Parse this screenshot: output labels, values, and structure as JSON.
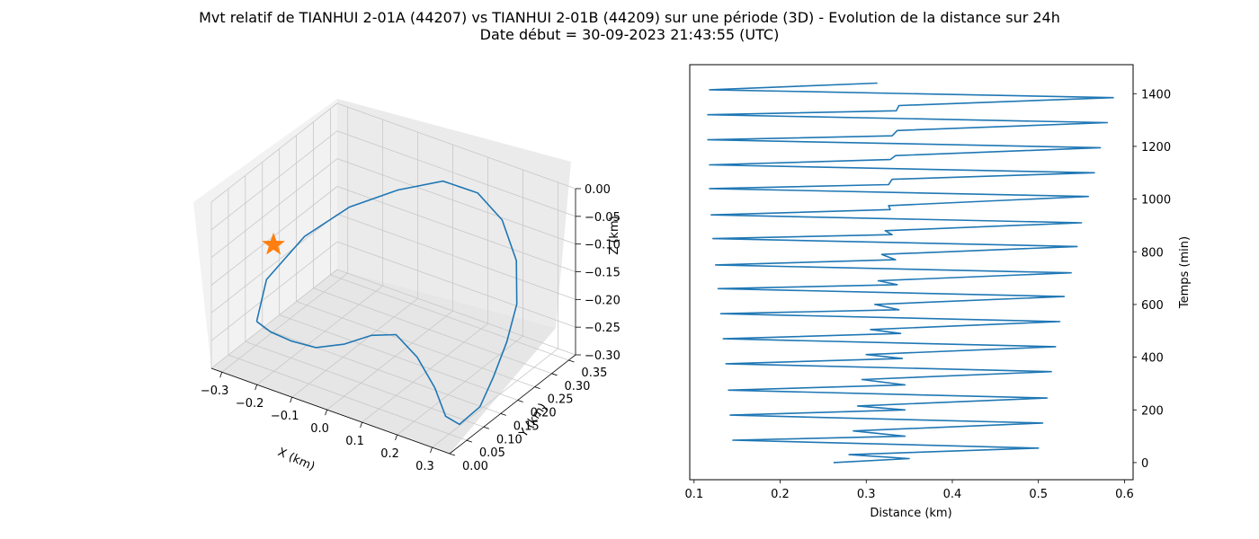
{
  "figure": {
    "title_line1": "Mvt relatif de TIANHUI 2-01A (44207) vs TIANHUI 2-01B (44209) sur une période (3D) - Evolution de la distance sur 24h",
    "title_line2": "Date début = 30-09-2023 21:43:55 (UTC)"
  },
  "chart_data": [
    {
      "type": "line",
      "subtype": "3d-trajectory",
      "xlabel": "X (km)",
      "ylabel": "Y (km)",
      "zlabel": "Z (km)",
      "xlim": [
        -0.33,
        0.35
      ],
      "ylim": [
        0.0,
        0.37
      ],
      "zlim": [
        -0.3,
        0.0
      ],
      "x_ticks": [
        "−0.3",
        "−0.2",
        "−0.1",
        "0.0",
        "0.1",
        "0.2",
        "0.3"
      ],
      "y_ticks": [
        "0.00",
        "0.05",
        "0.10",
        "0.15",
        "0.20",
        "0.25",
        "0.30",
        "0.35"
      ],
      "z_ticks": [
        "0.00",
        "−0.05",
        "−0.10",
        "−0.15",
        "−0.20",
        "−0.25",
        "−0.30"
      ],
      "grid": true,
      "series": [
        {
          "color": "#1f77b4",
          "x": [
            -0.22,
            -0.25,
            -0.2,
            -0.13,
            -0.05,
            0.03,
            0.1,
            0.16,
            0.22,
            0.26,
            0.28,
            0.3,
            0.32,
            0.31,
            0.29,
            0.24,
            0.17,
            0.1,
            0.04,
            -0.02,
            -0.08,
            -0.13,
            -0.18,
            -0.22
          ],
          "y": [
            0.02,
            0.08,
            0.14,
            0.2,
            0.26,
            0.31,
            0.34,
            0.35,
            0.33,
            0.29,
            0.24,
            0.18,
            0.12,
            0.07,
            0.05,
            0.07,
            0.09,
            0.1,
            0.09,
            0.07,
            0.05,
            0.03,
            0.02,
            0.02
          ],
          "z": [
            -0.2,
            -0.16,
            -0.1,
            -0.06,
            -0.04,
            -0.03,
            -0.05,
            -0.09,
            -0.14,
            -0.19,
            -0.23,
            -0.26,
            -0.28,
            -0.29,
            -0.27,
            -0.24,
            -0.21,
            -0.19,
            -0.2,
            -0.22,
            -0.23,
            -0.22,
            -0.21,
            -0.2
          ]
        }
      ],
      "marker": {
        "shape": "star",
        "color": "#ff7f0e",
        "x": -0.24,
        "y": 0.09,
        "z": -0.1
      }
    },
    {
      "type": "line",
      "xlabel": "Distance (km)",
      "ylabel": "Temps (min)",
      "xlim": [
        0.095,
        0.61
      ],
      "ylim": [
        -65,
        1510
      ],
      "x_ticks": [
        0.1,
        0.2,
        0.3,
        0.4,
        0.5,
        0.6
      ],
      "y_ticks": [
        0,
        200,
        400,
        600,
        800,
        1000,
        1200,
        1400
      ],
      "y_axis_side": "right",
      "grid": false,
      "series": [
        {
          "color": "#1f77b4",
          "distance": [
            0.262,
            0.35,
            0.28,
            0.5,
            0.145,
            0.345,
            0.285,
            0.505,
            0.142,
            0.345,
            0.29,
            0.51,
            0.14,
            0.345,
            0.295,
            0.515,
            0.137,
            0.342,
            0.3,
            0.52,
            0.134,
            0.34,
            0.305,
            0.525,
            0.131,
            0.338,
            0.31,
            0.53,
            0.128,
            0.336,
            0.314,
            0.538,
            0.125,
            0.334,
            0.318,
            0.545,
            0.122,
            0.33,
            0.322,
            0.55,
            0.12,
            0.328,
            0.326,
            0.558,
            0.118,
            0.326,
            0.33,
            0.565,
            0.118,
            0.328,
            0.334,
            0.572,
            0.116,
            0.33,
            0.336,
            0.58,
            0.116,
            0.335,
            0.338,
            0.587,
            0.118,
            0.313
          ],
          "time": [
            0,
            15,
            30,
            55,
            85,
            100,
            120,
            150,
            180,
            200,
            215,
            245,
            275,
            295,
            315,
            345,
            375,
            395,
            410,
            440,
            470,
            490,
            505,
            535,
            565,
            580,
            600,
            630,
            660,
            675,
            690,
            720,
            750,
            770,
            790,
            820,
            850,
            865,
            880,
            910,
            940,
            960,
            975,
            1010,
            1040,
            1055,
            1075,
            1100,
            1130,
            1150,
            1165,
            1195,
            1225,
            1240,
            1260,
            1290,
            1320,
            1335,
            1355,
            1385,
            1415,
            1440
          ]
        }
      ]
    }
  ]
}
